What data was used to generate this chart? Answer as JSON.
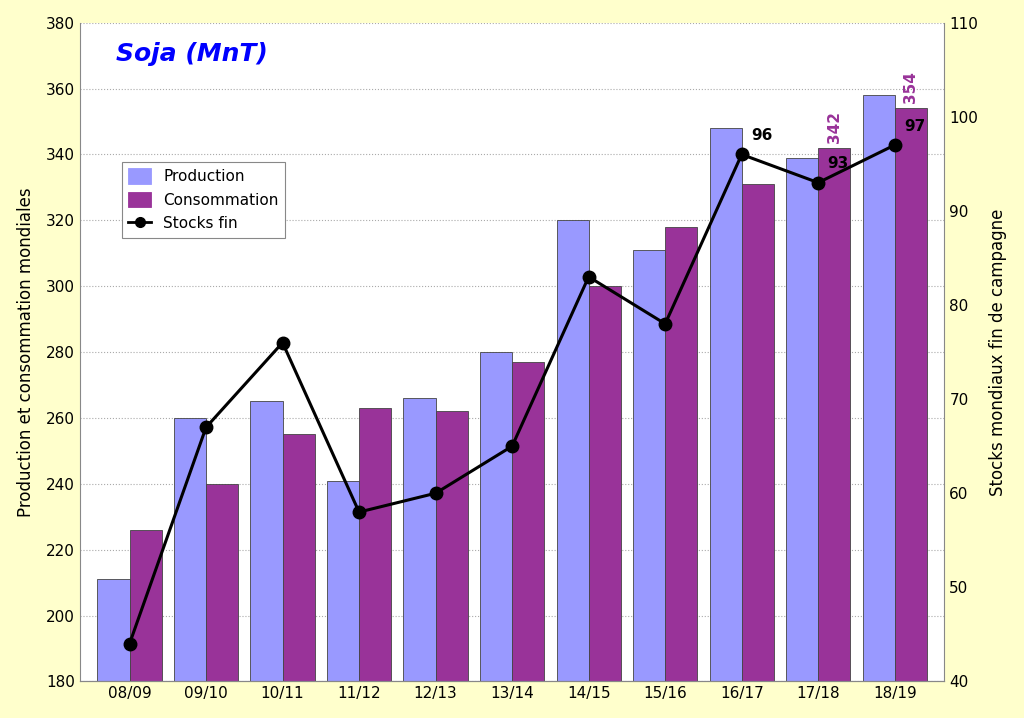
{
  "categories": [
    "08/09",
    "09/10",
    "10/11",
    "11/12",
    "12/13",
    "13/14",
    "14/15",
    "15/16",
    "16/17",
    "17/18",
    "18/19"
  ],
  "production": [
    211,
    260,
    265,
    241,
    266,
    280,
    320,
    311,
    348,
    339,
    358
  ],
  "consommation": [
    226,
    240,
    255,
    263,
    262,
    277,
    300,
    318,
    331,
    342,
    354
  ],
  "stocks_fin": [
    44,
    67,
    76,
    58,
    60,
    65,
    83,
    78,
    96,
    93,
    97
  ],
  "prod_color": "#9999FF",
  "conso_color": "#993399",
  "stocks_color": "#000000",
  "bg_color": "#FFFFCC",
  "plot_bg_color": "#FFFFFF",
  "title": "Soja (MnT)",
  "title_color": "#0000FF",
  "ylabel_left": "Production et consommation mondiales",
  "ylabel_right": "Stocks mondiaux fin de campagne",
  "ylim_left": [
    180,
    380
  ],
  "ylim_right": [
    40,
    110
  ],
  "yticks_left": [
    180,
    200,
    220,
    240,
    260,
    280,
    300,
    320,
    340,
    360,
    380
  ],
  "yticks_right": [
    40,
    50,
    60,
    70,
    80,
    90,
    100,
    110
  ],
  "legend_prod": "Production",
  "legend_conso": "Consommation",
  "legend_stocks": "Stocks fin",
  "stocks_annotations": {
    "8": 96,
    "9": 93,
    "10": 97
  },
  "conso_annotations": {
    "9": 342,
    "10": 354
  }
}
